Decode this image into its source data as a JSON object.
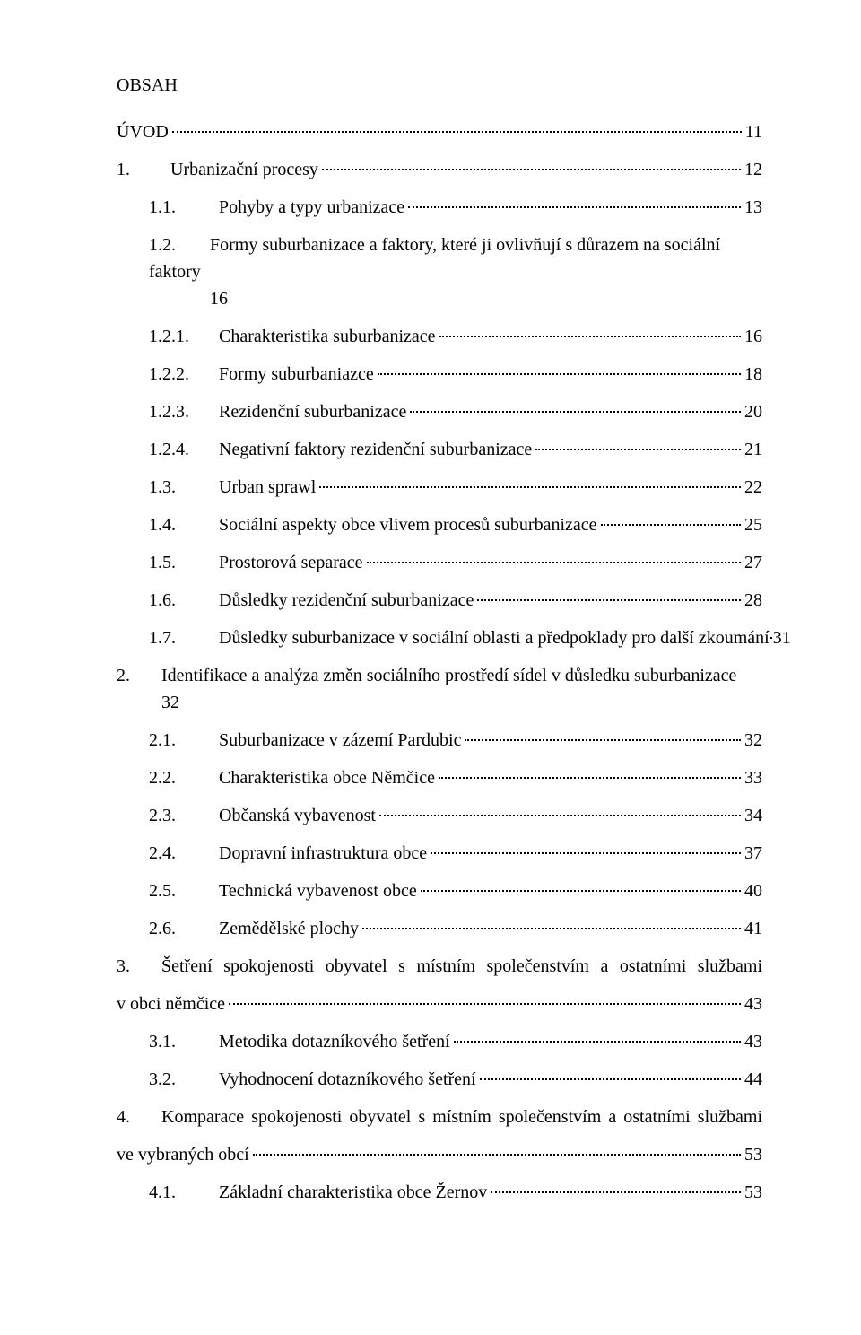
{
  "title": "OBSAH",
  "entries": [
    {
      "indent": 0,
      "num": "",
      "label": "ÚVOD",
      "page": "11",
      "numClass": ""
    },
    {
      "indent": 0,
      "num": "1.",
      "label": "Urbanizační procesy",
      "page": "12",
      "numClass": "num-wide"
    },
    {
      "indent": 2,
      "num": "1.1.",
      "label": "Pohyby a typy urbanizace",
      "page": "13",
      "numClass": "num-sub"
    },
    {
      "indent": 2,
      "num": "1.2.",
      "label": "Formy suburbanizace a faktory, které ji ovlivňují s důrazem na sociální faktory",
      "wrapTail": "16",
      "page": "",
      "numClass": "num-sub",
      "nodots": true
    },
    {
      "indent": 2,
      "num": "1.2.1.",
      "label": "Charakteristika suburbanizace",
      "page": "16",
      "numClass": "num-sub"
    },
    {
      "indent": 2,
      "num": "1.2.2.",
      "label": "Formy suburbaniazce",
      "page": "18",
      "numClass": "num-sub"
    },
    {
      "indent": 2,
      "num": "1.2.3.",
      "label": "Rezidenční suburbanizace",
      "page": "20",
      "numClass": "num-sub"
    },
    {
      "indent": 2,
      "num": "1.2.4.",
      "label": "Negativní faktory rezidenční suburbanizace",
      "page": "21",
      "numClass": "num-sub"
    },
    {
      "indent": 2,
      "num": "1.3.",
      "label": "Urban sprawl",
      "page": "22",
      "numClass": "num-sub"
    },
    {
      "indent": 2,
      "num": "1.4.",
      "label": "Sociální aspekty obce vlivem procesů suburbanizace",
      "page": "25",
      "numClass": "num-sub"
    },
    {
      "indent": 2,
      "num": "1.5.",
      "label": "Prostorová separace",
      "page": "27",
      "numClass": "num-sub"
    },
    {
      "indent": 2,
      "num": "1.6.",
      "label": "Důsledky rezidenční suburbanizace",
      "page": "28",
      "numClass": "num-sub"
    },
    {
      "indent": 2,
      "num": "1.7.",
      "label": "Důsledky suburbanizace v sociální oblasti a předpoklady pro další zkoumání",
      "page": "31",
      "numClass": "num-sub",
      "tight": true
    },
    {
      "indent": 0,
      "num": "2.",
      "label": "Identifikace a analýza změn sociálního prostředí sídel v důsledku suburbanizace",
      "wrapTail": "32",
      "page": "",
      "numClass": "num-wide",
      "nodots": true
    },
    {
      "indent": 2,
      "num": "2.1.",
      "label": "Suburbanizace v zázemí Pardubic",
      "page": "32",
      "numClass": "num-sub"
    },
    {
      "indent": 2,
      "num": "2.2.",
      "label": "Charakteristika obce Němčice",
      "page": "33",
      "numClass": "num-sub"
    },
    {
      "indent": 2,
      "num": "2.3.",
      "label": "Občanská vybavenost",
      "page": "34",
      "numClass": "num-sub"
    },
    {
      "indent": 2,
      "num": "2.4.",
      "label": "Dopravní infrastruktura obce",
      "page": "37",
      "numClass": "num-sub"
    },
    {
      "indent": 2,
      "num": "2.5.",
      "label": "Technická vybavenost obce",
      "page": "40",
      "numClass": "num-sub"
    },
    {
      "indent": 2,
      "num": "2.6.",
      "label": "Zemědělské plochy",
      "page": "41",
      "numClass": "num-sub"
    },
    {
      "indent": 0,
      "num": "3.",
      "label": "Šetření spokojenosti obyvatel s místním společenstvím a ostatními službami v obci němčice",
      "justify": true,
      "page": "43",
      "numClass": "num-wide"
    },
    {
      "indent": 2,
      "num": "3.1.",
      "label": "Metodika dotazníkového šetření",
      "page": "43",
      "numClass": "num-sub"
    },
    {
      "indent": 2,
      "num": "3.2.",
      "label": "Vyhodnocení dotazníkového šetření",
      "page": "44",
      "numClass": "num-sub"
    },
    {
      "indent": 0,
      "num": "4.",
      "label": "Komparace spokojenosti obyvatel s místním společenstvím a ostatními službami ve vybraných obcí",
      "justify": true,
      "page": "53",
      "numClass": "num-wide"
    },
    {
      "indent": 2,
      "num": "4.1.",
      "label": "Základní charakteristika obce Žernov",
      "page": "53",
      "numClass": "num-sub"
    }
  ]
}
